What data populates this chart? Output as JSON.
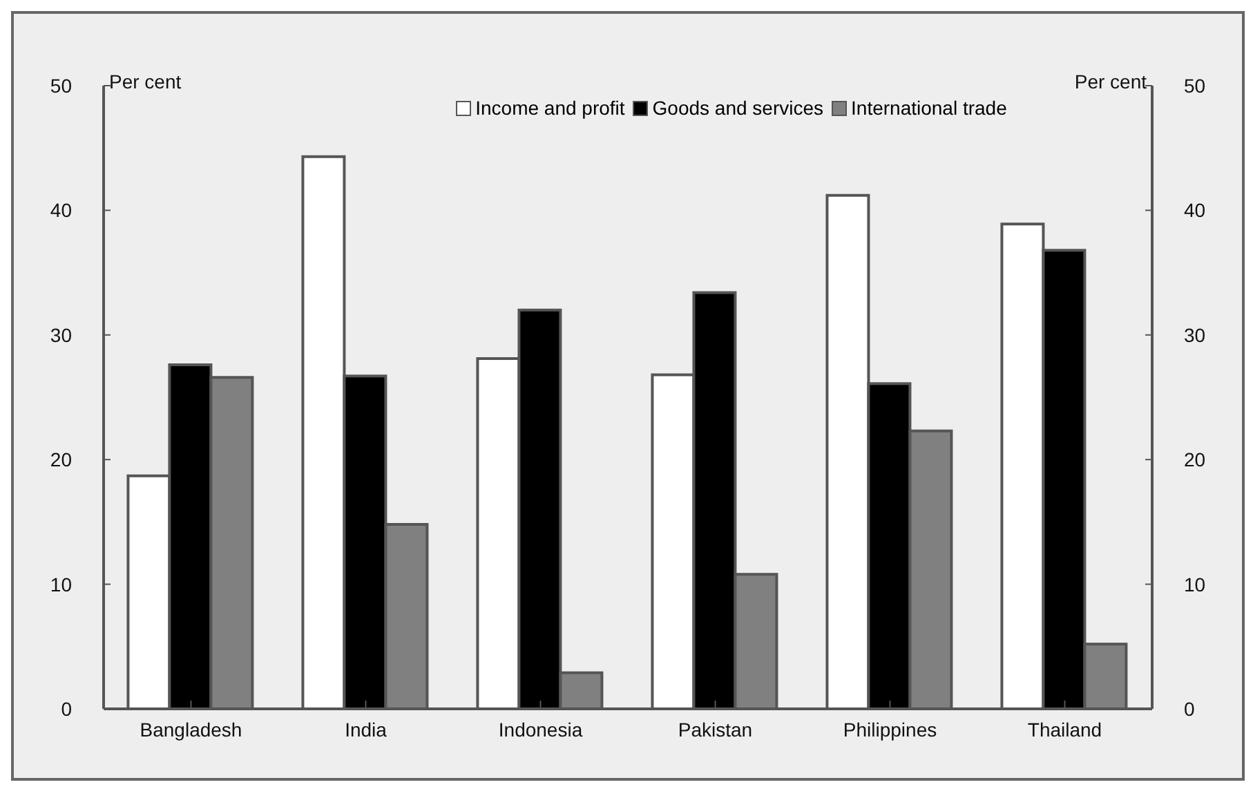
{
  "chart_data": {
    "type": "bar",
    "ylabel": "Per cent",
    "y2label": "Per cent",
    "categories": [
      "Bangladesh",
      "India",
      "Indonesia",
      "Pakistan",
      "Philippines",
      "Thailand"
    ],
    "series": [
      {
        "name": "Income and profit",
        "color": "#ffffff",
        "values": [
          18.7,
          44.3,
          28.1,
          26.8,
          41.2,
          38.9
        ]
      },
      {
        "name": "Goods and services",
        "color": "#000000",
        "values": [
          27.6,
          26.7,
          32.0,
          33.4,
          26.1,
          36.8
        ]
      },
      {
        "name": "International trade",
        "color": "#808080",
        "values": [
          26.6,
          14.8,
          2.9,
          10.8,
          22.3,
          5.2
        ]
      }
    ],
    "ylim": [
      0,
      50
    ],
    "yticks": [
      0,
      10,
      20,
      30,
      40,
      50
    ],
    "y2lim": [
      0,
      50
    ],
    "y2ticks": [
      0,
      10,
      20,
      30,
      40,
      50
    ],
    "grid": false,
    "legend": "top"
  }
}
